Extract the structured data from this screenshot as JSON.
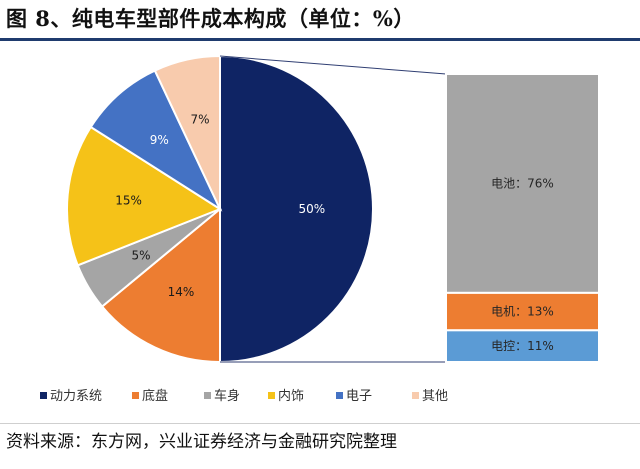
{
  "title": "图 8、纯电车型部件成本构成（单位：%）",
  "source": "资料来源：东方网，兴业证券经济与金融研究院整理",
  "colors": {
    "navy": "#0f2464",
    "orange": "#ed7d31",
    "gray": "#a5a5a5",
    "yellow": "#f5c218",
    "blue": "#4472c4",
    "peach": "#f8cbad",
    "connector": "#2f3e72"
  },
  "chart_data": [
    {
      "type": "pie",
      "slices": [
        {
          "name": "动力系统",
          "value": 50,
          "label": "50%",
          "color": "#0f2464"
        },
        {
          "name": "底盘",
          "value": 14,
          "label": "14%",
          "color": "#ed7d31"
        },
        {
          "name": "车身",
          "value": 5,
          "label": "5%",
          "color": "#a5a5a5"
        },
        {
          "name": "内饰",
          "value": 15,
          "label": "15%",
          "color": "#f5c218"
        },
        {
          "name": "电子",
          "value": 9,
          "label": "9%",
          "color": "#4472c4"
        },
        {
          "name": "其他",
          "value": 7,
          "label": "7%",
          "color": "#f8cbad"
        }
      ],
      "legend": [
        "动力系统",
        "底盘",
        "车身",
        "内饰",
        "电子",
        "其他"
      ],
      "legend_position": "bottom"
    },
    {
      "type": "bar",
      "stacked": true,
      "breakdown_of": "动力系统",
      "segments": [
        {
          "name": "电池",
          "value": 76,
          "label": "电池：76%",
          "color": "#a5a5a5"
        },
        {
          "name": "电机",
          "value": 13,
          "label": "电机：13%",
          "color": "#ed7d31"
        },
        {
          "name": "电控",
          "value": 11,
          "label": "电控：11%",
          "color": "#5b9bd5"
        }
      ]
    }
  ]
}
